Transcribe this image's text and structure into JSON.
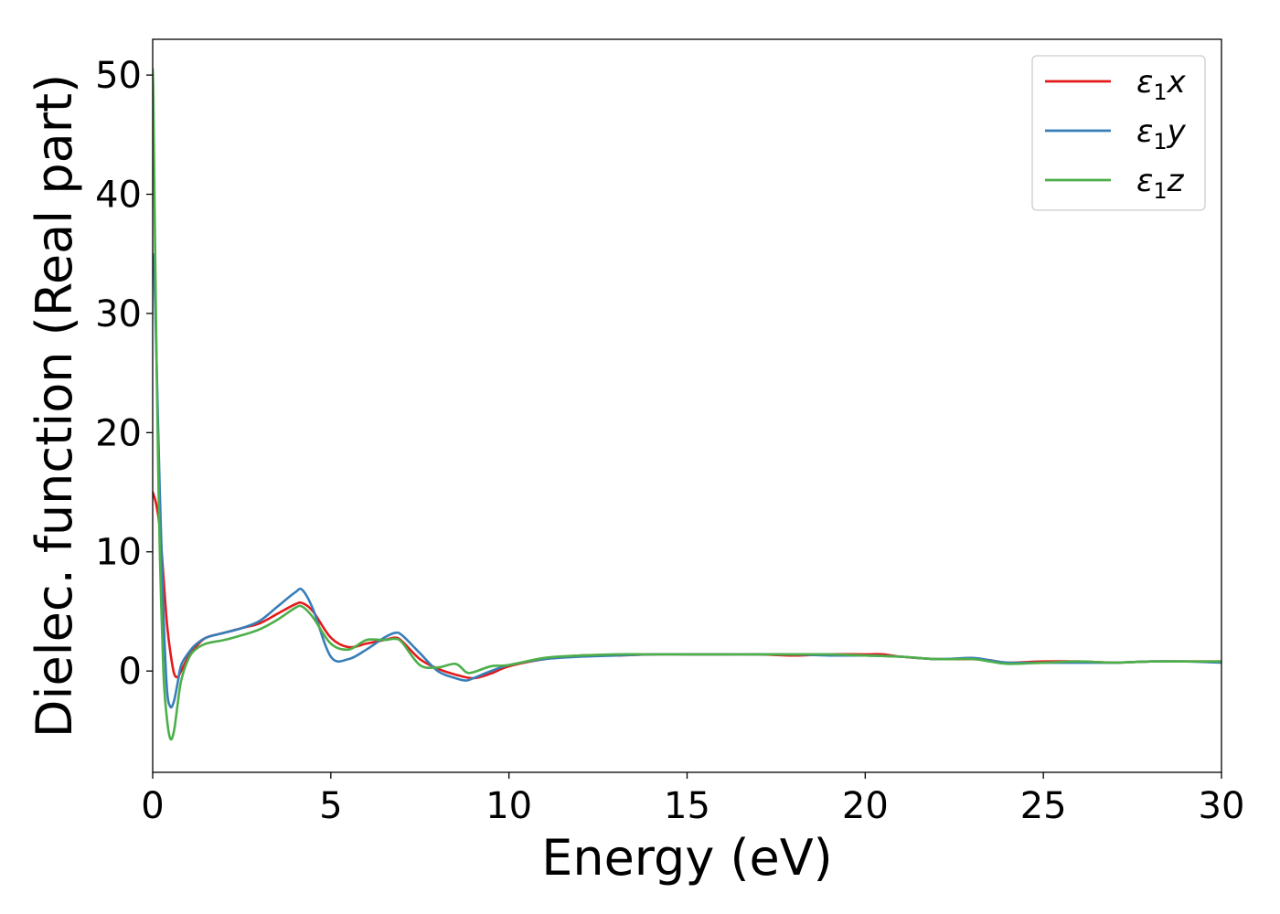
{
  "chart_data": {
    "type": "line",
    "title": "",
    "xlabel": "Energy (eV)",
    "ylabel": "Dielec. function (Real part)",
    "xlim": [
      0,
      30
    ],
    "ylim": [
      -8.5,
      53
    ],
    "xticks": [
      "0",
      "5",
      "10",
      "15",
      "20",
      "25",
      "30"
    ],
    "yticks": [
      "0",
      "10",
      "20",
      "30",
      "40",
      "50"
    ],
    "grid": false,
    "legend_position": "top-right",
    "series": [
      {
        "name": "ε₁x",
        "legend_main": "ε",
        "legend_sub": "1",
        "legend_var": "x",
        "color": "#e41a1c",
        "x": [
          0,
          0.1,
          0.2,
          0.3,
          0.4,
          0.5,
          0.6,
          0.7,
          0.8,
          1.0,
          1.2,
          1.5,
          2.0,
          2.5,
          3.0,
          3.5,
          4.0,
          4.2,
          4.5,
          5.0,
          5.5,
          6.0,
          6.5,
          6.8,
          7.0,
          7.5,
          8.0,
          8.5,
          9.0,
          9.5,
          10.0,
          11.0,
          12.0,
          13.0,
          14.0,
          15.0,
          16.0,
          17.0,
          18.0,
          19.0,
          20.0,
          20.5,
          21.0,
          22.0,
          23.0,
          23.5,
          24.0,
          25.0,
          26.0,
          27.0,
          28.0,
          29.0,
          30.0
        ],
        "y": [
          15,
          14,
          12,
          8,
          4,
          1.5,
          -0.2,
          -0.5,
          0.0,
          1.2,
          2.0,
          2.8,
          3.2,
          3.6,
          4.0,
          4.8,
          5.6,
          5.7,
          5.0,
          2.8,
          2.0,
          2.3,
          2.6,
          2.8,
          2.5,
          1.0,
          0.2,
          -0.3,
          -0.6,
          -0.2,
          0.4,
          1.0,
          1.3,
          1.3,
          1.4,
          1.4,
          1.4,
          1.4,
          1.3,
          1.4,
          1.4,
          1.4,
          1.2,
          1.0,
          1.0,
          0.9,
          0.7,
          0.8,
          0.8,
          0.7,
          0.8,
          0.8,
          0.8
        ]
      },
      {
        "name": "ε₁y",
        "legend_main": "ε",
        "legend_sub": "1",
        "legend_var": "y",
        "color": "#377eb8",
        "x": [
          0,
          0.05,
          0.1,
          0.2,
          0.3,
          0.4,
          0.5,
          0.6,
          0.7,
          0.8,
          1.0,
          1.2,
          1.5,
          2.0,
          2.5,
          3.0,
          3.5,
          4.0,
          4.2,
          4.5,
          5.0,
          5.5,
          6.0,
          6.5,
          6.8,
          7.0,
          7.5,
          8.0,
          8.5,
          8.8,
          9.0,
          9.5,
          10.0,
          11.0,
          12.0,
          13.0,
          14.0,
          15.0,
          16.0,
          17.0,
          18.0,
          19.0,
          20.0,
          21.0,
          22.0,
          23.0,
          23.5,
          24.0,
          25.0,
          26.0,
          27.0,
          28.0,
          29.0,
          30.0
        ],
        "y": [
          35,
          33,
          27,
          15,
          5,
          -1.5,
          -3.0,
          -2.5,
          -1.0,
          0.5,
          1.5,
          2.2,
          2.8,
          3.2,
          3.6,
          4.2,
          5.4,
          6.6,
          6.8,
          5.2,
          1.2,
          1.0,
          1.8,
          2.8,
          3.2,
          3.0,
          1.5,
          0.0,
          -0.6,
          -0.8,
          -0.6,
          0.0,
          0.5,
          1.0,
          1.2,
          1.3,
          1.4,
          1.4,
          1.4,
          1.4,
          1.4,
          1.3,
          1.3,
          1.2,
          1.0,
          1.1,
          0.9,
          0.7,
          0.7,
          0.7,
          0.7,
          0.8,
          0.8,
          0.7
        ]
      },
      {
        "name": "ε₁z",
        "legend_main": "ε",
        "legend_sub": "1",
        "legend_var": "z",
        "color": "#4daf4a",
        "x": [
          0,
          0.02,
          0.05,
          0.1,
          0.15,
          0.2,
          0.3,
          0.4,
          0.5,
          0.6,
          0.7,
          0.8,
          1.0,
          1.2,
          1.5,
          2.0,
          2.5,
          3.0,
          3.5,
          4.0,
          4.2,
          4.5,
          5.0,
          5.5,
          6.0,
          6.5,
          6.8,
          7.0,
          7.5,
          8.0,
          8.5,
          8.8,
          9.0,
          9.5,
          10.0,
          11.0,
          12.0,
          13.0,
          14.0,
          15.0,
          16.0,
          17.0,
          18.0,
          19.0,
          20.0,
          21.0,
          22.0,
          23.0,
          23.5,
          24.0,
          25.0,
          26.0,
          27.0,
          28.0,
          29.0,
          30.0
        ],
        "y": [
          50.5,
          48,
          40,
          28,
          18,
          10,
          0,
          -4.0,
          -5.7,
          -5.0,
          -2.8,
          -0.8,
          1.0,
          1.8,
          2.3,
          2.6,
          3.0,
          3.5,
          4.3,
          5.3,
          5.4,
          4.5,
          2.3,
          1.8,
          2.6,
          2.6,
          2.7,
          2.4,
          0.5,
          0.3,
          0.6,
          -0.1,
          -0.1,
          0.4,
          0.5,
          1.1,
          1.3,
          1.4,
          1.4,
          1.4,
          1.4,
          1.4,
          1.4,
          1.4,
          1.3,
          1.2,
          1.0,
          1.0,
          0.8,
          0.6,
          0.7,
          0.8,
          0.7,
          0.8,
          0.8,
          0.8
        ]
      }
    ]
  }
}
